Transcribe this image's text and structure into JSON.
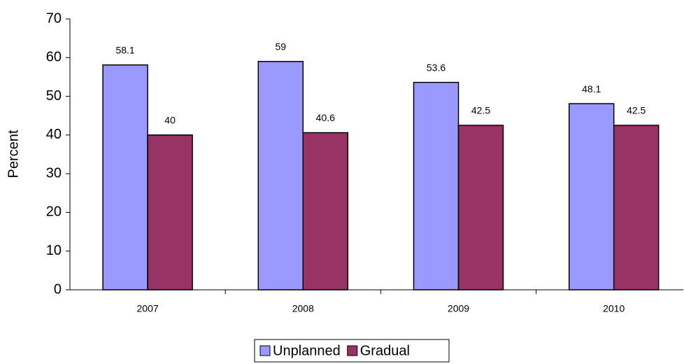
{
  "chart_data": {
    "type": "bar",
    "y_label": "Percent",
    "categories": [
      "2007",
      "2008",
      "2009",
      "2010"
    ],
    "series": [
      {
        "name": "Unplanned",
        "color": "#9999ff",
        "values": [
          58.1,
          59,
          53.6,
          48.1
        ]
      },
      {
        "name": "Gradual",
        "color": "#993366",
        "values": [
          40,
          40.6,
          42.5,
          42.5
        ]
      }
    ],
    "ylim": [
      0,
      70
    ],
    "yticks": [
      0,
      10,
      20,
      30,
      40,
      50,
      60,
      70
    ],
    "grid": false,
    "legend": "bottom"
  }
}
